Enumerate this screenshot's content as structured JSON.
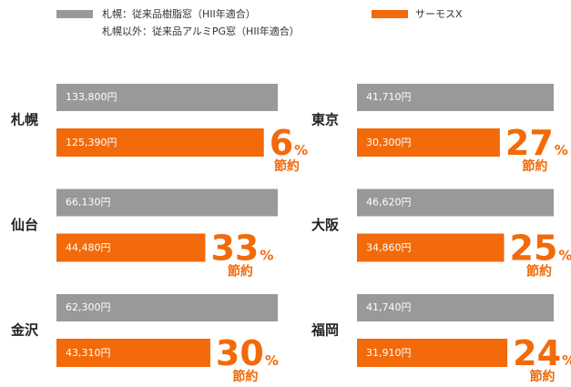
{
  "chart_data": {
    "type": "bar",
    "categories": [
      "札幌",
      "東京",
      "仙台",
      "大阪",
      "金沢",
      "福岡"
    ],
    "series": [
      {
        "name": "札幌：従来品樹脂窓（HII年適合）",
        "legend_subline": "札幌以外：従来品アルミPG窓（HII年適合）",
        "color": "#999999",
        "values": [
          133800,
          41710,
          66130,
          46620,
          62300,
          41740
        ],
        "value_labels": [
          "133,800円",
          "41,710円",
          "66,130円",
          "46,620円",
          "62,300円",
          "41,740円"
        ]
      },
      {
        "name": "サーモスX",
        "color": "#f26a0a",
        "values": [
          125390,
          30300,
          44480,
          34860,
          43310,
          31910
        ],
        "value_labels": [
          "125,390円",
          "30,300円",
          "44,480円",
          "34,860円",
          "43,310円",
          "31,910円"
        ]
      }
    ],
    "savings": [
      6,
      27,
      33,
      25,
      30,
      24
    ],
    "savings_unit": "%",
    "savings_label": "節約"
  }
}
